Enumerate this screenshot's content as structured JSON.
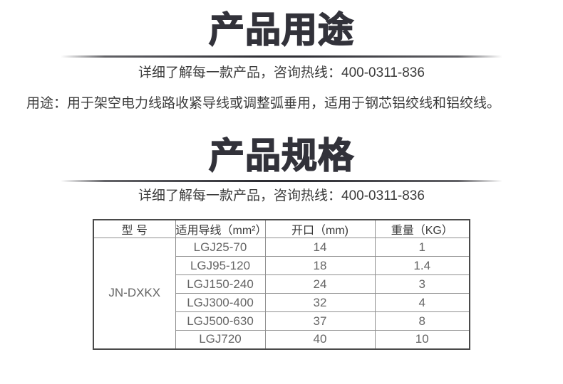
{
  "colors": {
    "background": "#ffffff",
    "heading": "#32323a",
    "body_text": "#3b3b3b",
    "table_border": "#4a4a4a",
    "table_grid": "#8f8f8f",
    "table_header_text": "#3a3a3a",
    "table_data_text": "#666666"
  },
  "sections": {
    "usage": {
      "title": "产品用途",
      "hotline": "详细了解每一款产品，咨询热线：400-0311-836",
      "body": "用途：用于架空电力线路收紧导线或调整弧垂用，适用于钢芯铝绞线和铝绞线。"
    },
    "spec": {
      "title": "产品规格",
      "hotline": "详细了解每一款产品，咨询热线：400-0311-836"
    }
  },
  "table": {
    "headers": [
      "型 号",
      "适用导线（mm²）",
      "开口（mm)",
      "重量（KG）"
    ],
    "model": "JN-DXKX",
    "rows": [
      [
        "LGJ25-70",
        "14",
        "1"
      ],
      [
        "LGJ95-120",
        "18",
        "1.4"
      ],
      [
        "LGJ150-240",
        "24",
        "3"
      ],
      [
        "LGJ300-400",
        "32",
        "4"
      ],
      [
        "LGJ500-630",
        "37",
        "8"
      ],
      [
        "LGJ720",
        "40",
        "10"
      ]
    ]
  }
}
